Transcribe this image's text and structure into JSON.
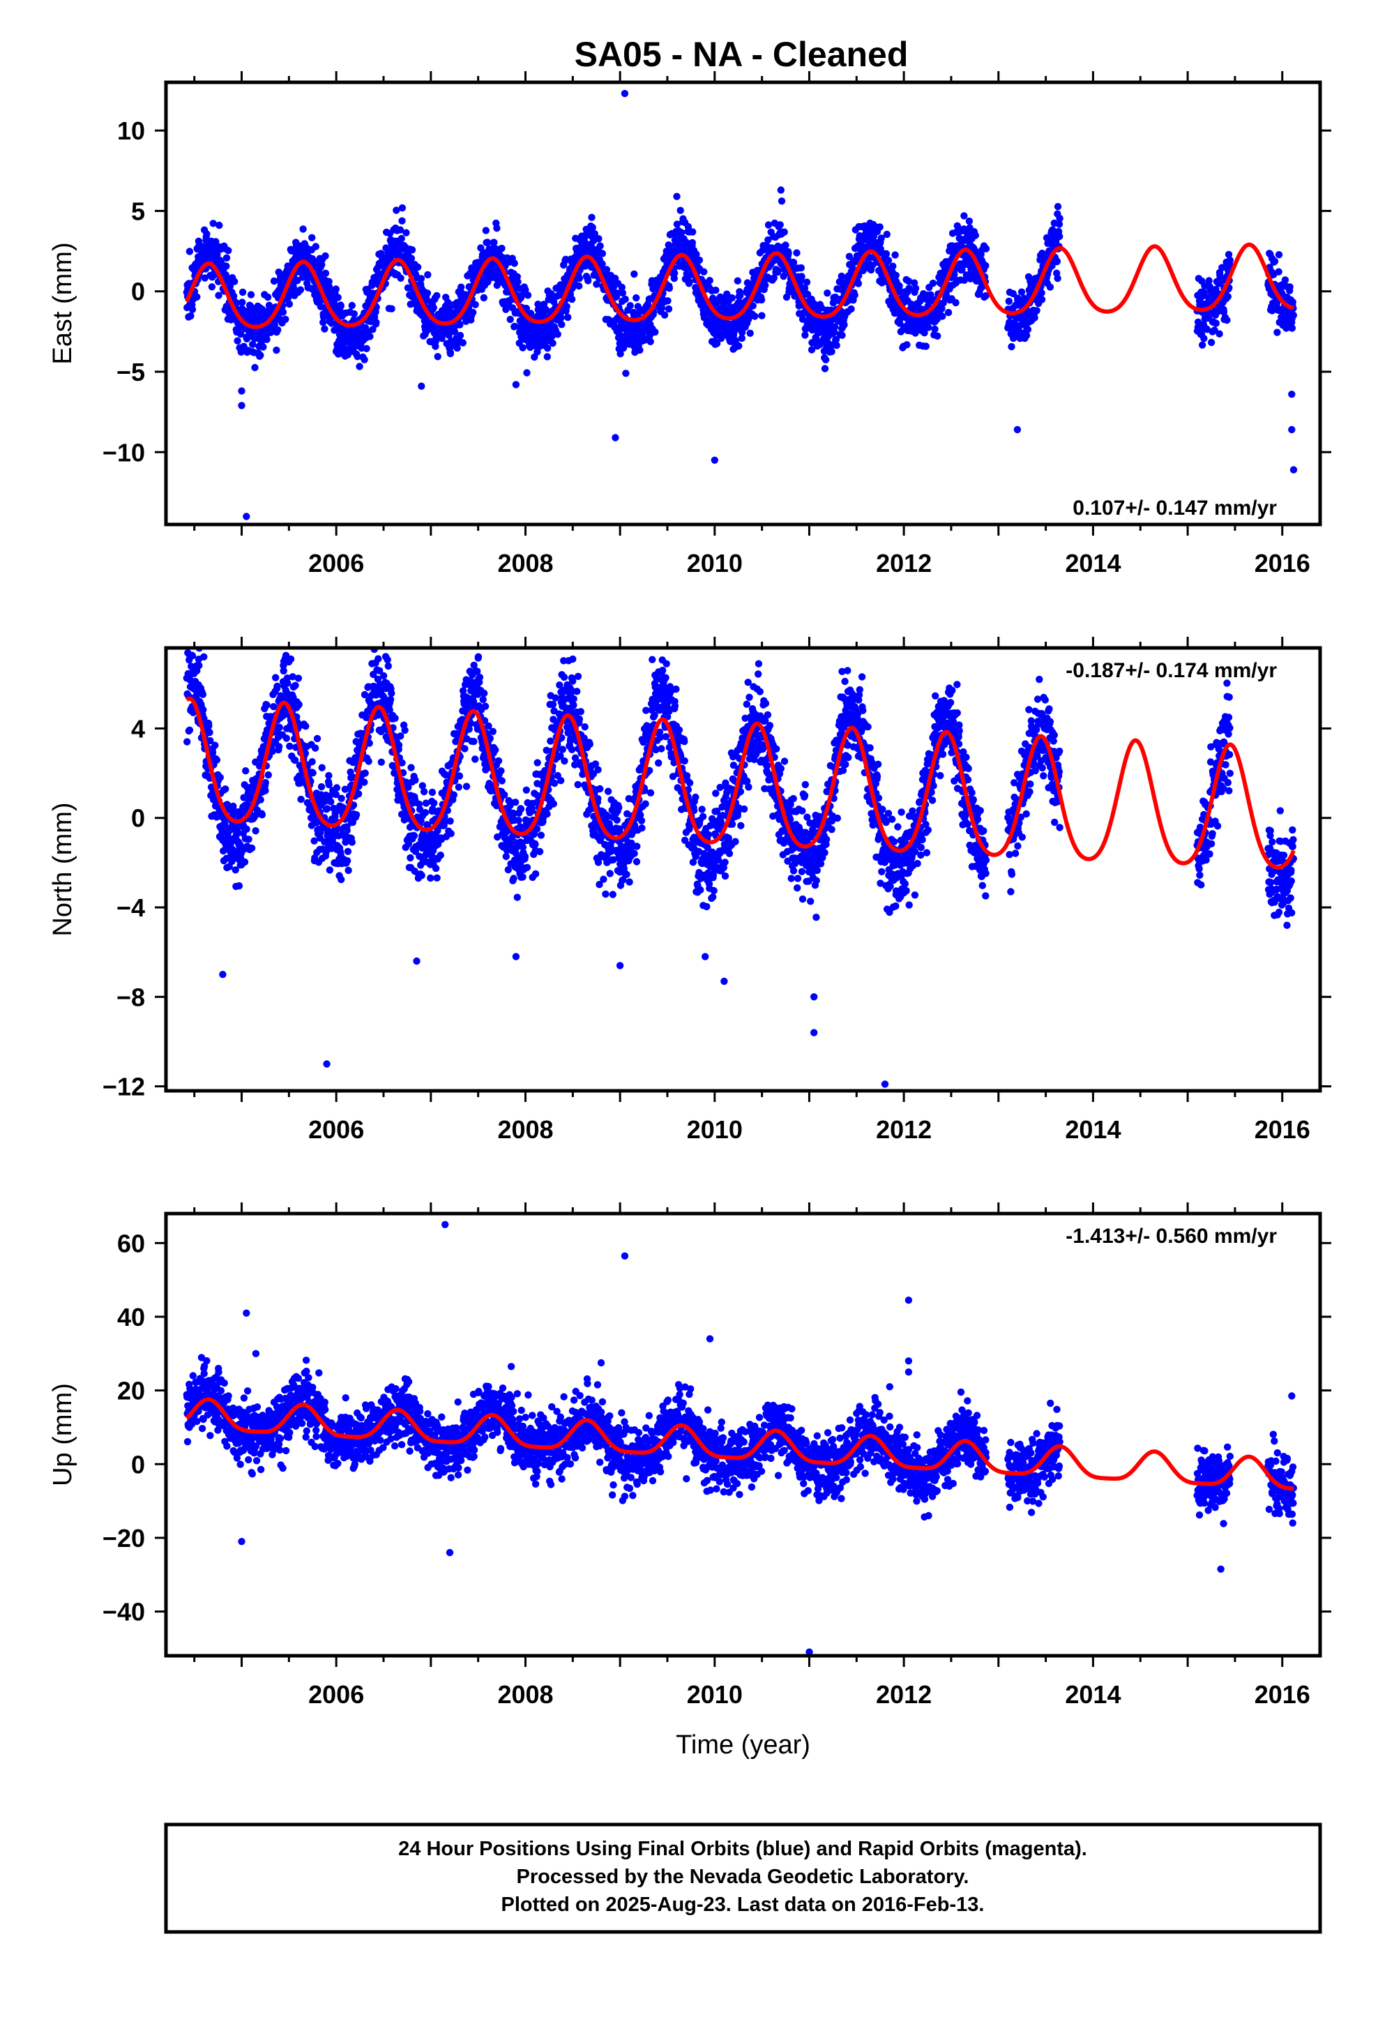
{
  "title": "SA05  - NA - Cleaned",
  "colors": {
    "points": "#0000ff",
    "model": "#ff0000",
    "frame": "#000000"
  },
  "chart_data": [
    {
      "type": "scatter",
      "component": "east",
      "ylabel": "East (mm)",
      "xlabel": "",
      "xlim": [
        2004.2,
        2016.4
      ],
      "ylim": [
        -14.5,
        13
      ],
      "yticks": [
        10,
        5,
        0,
        -5,
        -10
      ],
      "ytick_labels": [
        "10",
        "5",
        "0",
        "−5",
        "−10"
      ],
      "xticks": [
        2006,
        2008,
        2010,
        2012,
        2014,
        2016
      ],
      "xtick_labels": [
        "2006",
        "2008",
        "2010",
        "2012",
        "2014",
        "2016"
      ],
      "rate_text": "0.107+/- 0.147 mm/yr",
      "rate_position": "bottom-right",
      "model": {
        "offset": 0.0,
        "trend": 0.107,
        "annual_amp": 2.0,
        "annual_phase_peak": 0.65,
        "semiannual_amp": 0.3
      },
      "scatter": {
        "noise": 0.9,
        "amp_jitter": 1.5
      },
      "outliers": [
        [
          2005.05,
          -14.0
        ],
        [
          2005.0,
          -6.2
        ],
        [
          2005.0,
          -7.1
        ],
        [
          2009.05,
          12.3
        ],
        [
          2008.95,
          -9.1
        ],
        [
          2010.0,
          -10.5
        ],
        [
          2013.2,
          -8.6
        ],
        [
          2016.1,
          -6.4
        ],
        [
          2016.1,
          -8.6
        ],
        [
          2016.12,
          -11.1
        ],
        [
          2006.9,
          -5.9
        ],
        [
          2007.9,
          -5.8
        ],
        [
          2009.6,
          5.9
        ],
        [
          2008.7,
          4.6
        ],
        [
          2010.7,
          6.3
        ]
      ]
    },
    {
      "type": "scatter",
      "component": "north",
      "ylabel": "North (mm)",
      "xlabel": "",
      "xlim": [
        2004.2,
        2016.4
      ],
      "ylim": [
        -12.2,
        7.6
      ],
      "yticks": [
        4,
        0,
        -4,
        -8,
        -12
      ],
      "ytick_labels": [
        "4",
        "0",
        "−4",
        "−8",
        "−12"
      ],
      "xticks": [
        2006,
        2008,
        2010,
        2012,
        2014,
        2016
      ],
      "xtick_labels": [
        "2006",
        "2008",
        "2010",
        "2012",
        "2014",
        "2016"
      ],
      "rate_text": "-0.187+/- 0.174 mm/yr",
      "rate_position": "top-right",
      "model": {
        "offset": 1.2,
        "trend": -0.187,
        "annual_amp": 2.7,
        "annual_phase_peak": 0.45,
        "semiannual_amp": 0.4
      },
      "scatter": {
        "noise": 1.0,
        "amp_jitter": 1.8
      },
      "outliers": [
        [
          2005.9,
          -11.0
        ],
        [
          2004.8,
          -7.0
        ],
        [
          2011.05,
          -9.6
        ],
        [
          2011.05,
          -8.0
        ],
        [
          2011.8,
          -11.9
        ],
        [
          2010.1,
          -7.3
        ],
        [
          2009.9,
          -6.2
        ],
        [
          2006.85,
          -6.4
        ],
        [
          2009.0,
          -6.6
        ],
        [
          2004.6,
          7.2
        ],
        [
          2008.5,
          7.1
        ],
        [
          2009.45,
          6.6
        ],
        [
          2007.9,
          -6.2
        ]
      ]
    },
    {
      "type": "scatter",
      "component": "up",
      "ylabel": "Up (mm)",
      "xlabel": "Time (year)",
      "xlim": [
        2004.2,
        2016.4
      ],
      "ylim": [
        -52,
        68
      ],
      "yticks": [
        60,
        40,
        20,
        0,
        -20,
        -40
      ],
      "ytick_labels": [
        "60",
        "40",
        "20",
        "0",
        "−20",
        "−40"
      ],
      "xticks": [
        2006,
        2008,
        2010,
        2012,
        2014,
        2016
      ],
      "xtick_labels": [
        "2006",
        "2008",
        "2010",
        "2012",
        "2014",
        "2016"
      ],
      "rate_text": "-1.413+/- 0.560 mm/yr",
      "rate_position": "top-right",
      "model": {
        "offset": 5.0,
        "trend": -1.413,
        "annual_amp": 4.0,
        "annual_phase_peak": 0.65,
        "semiannual_amp": 1.0
      },
      "scatter": {
        "noise": 4.0,
        "amp_jitter": 4.0
      },
      "outliers": [
        [
          2007.15,
          65.0
        ],
        [
          2009.05,
          56.5
        ],
        [
          2005.05,
          41.0
        ],
        [
          2005.15,
          30.0
        ],
        [
          2009.95,
          34.0
        ],
        [
          2012.05,
          44.5
        ],
        [
          2012.05,
          28.0
        ],
        [
          2012.05,
          25.0
        ],
        [
          2011.85,
          21.0
        ],
        [
          2011.0,
          -51.0
        ],
        [
          2007.2,
          -24.0
        ],
        [
          2005.0,
          -21.0
        ],
        [
          2015.35,
          -28.5
        ],
        [
          2016.1,
          18.5
        ],
        [
          2008.8,
          27.5
        ],
        [
          2007.85,
          26.5
        ],
        [
          2004.6,
          26.0
        ],
        [
          2006.1,
          18.0
        ],
        [
          2006.75,
          23.0
        ]
      ]
    }
  ],
  "data_segments": [
    [
      2004.42,
      2012.87
    ],
    [
      2013.1,
      2013.65
    ],
    [
      2015.1,
      2015.45
    ],
    [
      2015.85,
      2016.12
    ]
  ],
  "footer": {
    "line1": "24 Hour Positions Using Final Orbits (blue) and Rapid Orbits (magenta).",
    "line2": "Processed by the Nevada Geodetic Laboratory.",
    "line3": "Plotted on 2025-Aug-23. Last data on 2016-Feb-13."
  }
}
